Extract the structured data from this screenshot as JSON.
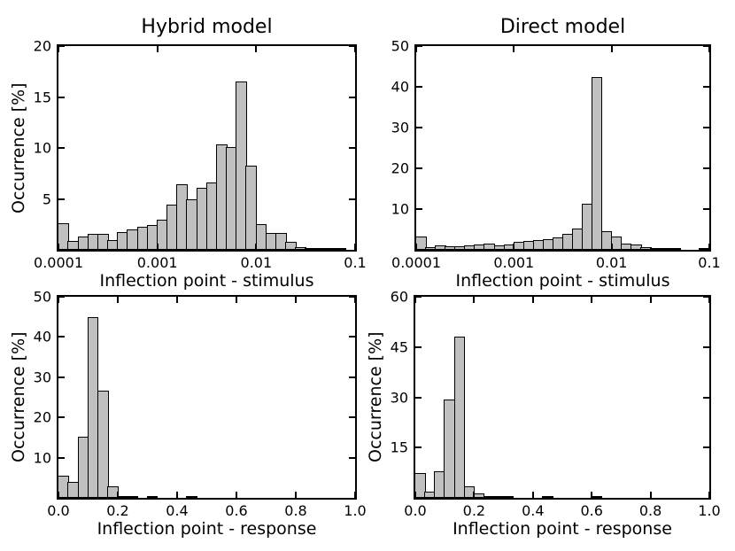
{
  "figure": {
    "background_color": "#ffffff",
    "bar_fill_color": "#c0c0c0",
    "bar_edge_color": "#000000",
    "axis_color": "#000000"
  },
  "chart_data": [
    {
      "id": "hybrid-stimulus",
      "position": "top-left",
      "type": "bar",
      "title": "Hybrid model",
      "xlabel": "Inflection point - stimulus",
      "ylabel": "Occurrence [%]",
      "xscale": "log",
      "xlim": [
        0.0001,
        0.1
      ],
      "ylim": [
        0,
        20
      ],
      "yticks": [
        5,
        10,
        15,
        20
      ],
      "ytick_labels": [
        "5",
        "10",
        "15",
        "20"
      ],
      "xticks": [
        0.0001,
        0.001,
        0.01,
        0.1
      ],
      "xtick_labels": [
        "0.0001",
        "0.001",
        "0.01",
        "0.1"
      ],
      "n_bins": 30,
      "bins_per_decade": 10,
      "grid": false,
      "values": [
        2.6,
        0.9,
        1.3,
        1.55,
        1.55,
        1.0,
        1.75,
        2.0,
        2.25,
        2.45,
        3.0,
        4.4,
        6.4,
        5.0,
        6.05,
        6.6,
        10.35,
        10.05,
        16.5,
        8.3,
        2.55,
        1.65,
        1.65,
        0.75,
        0.3,
        0.2,
        0.1,
        0.05,
        0.15,
        0
      ]
    },
    {
      "id": "direct-stimulus",
      "position": "top-right",
      "type": "bar",
      "title": "Direct model",
      "xlabel": "Inflection point - stimulus",
      "ylabel": "",
      "xscale": "log",
      "xlim": [
        0.0001,
        0.1
      ],
      "ylim": [
        0,
        50
      ],
      "yticks": [
        10,
        20,
        30,
        40,
        50
      ],
      "ytick_labels": [
        "10",
        "20",
        "30",
        "40",
        "50"
      ],
      "xticks": [
        0.0001,
        0.001,
        0.01,
        0.1
      ],
      "xtick_labels": [
        "0.0001",
        "0.001",
        "0.01",
        "0.1"
      ],
      "n_bins": 30,
      "bins_per_decade": 10,
      "grid": false,
      "values": [
        3.3,
        0.6,
        1.1,
        0.8,
        0.8,
        1.0,
        1.4,
        1.5,
        1.0,
        1.2,
        1.9,
        2.2,
        2.4,
        2.6,
        3.0,
        3.9,
        5.3,
        11.2,
        42.3,
        4.6,
        3.3,
        1.6,
        1.2,
        0.7,
        0.4,
        0.2,
        0.05,
        0,
        0,
        0.15
      ]
    },
    {
      "id": "hybrid-response",
      "position": "bottom-left",
      "type": "bar",
      "title": "",
      "xlabel": "Inflection point - response",
      "ylabel": "Occurrence [%]",
      "xscale": "linear",
      "xlim": [
        0,
        1
      ],
      "ylim": [
        0,
        50
      ],
      "yticks": [
        10,
        20,
        30,
        40,
        50
      ],
      "ytick_labels": [
        "10",
        "20",
        "30",
        "40",
        "50"
      ],
      "xticks": [
        0,
        0.2,
        0.4,
        0.6,
        0.8,
        1.0
      ],
      "xtick_labels": [
        "0.0",
        "0.2",
        "0.4",
        "0.6",
        "0.8",
        "1.0"
      ],
      "n_bins": 30,
      "bin_width": 0.0333,
      "grid": false,
      "values": [
        5.6,
        3.9,
        15.3,
        45.0,
        26.7,
        2.9,
        0.5,
        0.2,
        0,
        0.35,
        0,
        0,
        0,
        0.25,
        0,
        0,
        0,
        0,
        0,
        0,
        0,
        0,
        0,
        0,
        0,
        0,
        0,
        0,
        0,
        0
      ]
    },
    {
      "id": "direct-response",
      "position": "bottom-right",
      "type": "bar",
      "title": "",
      "xlabel": "Inflection point - response",
      "ylabel": "Occurrence [%]",
      "xscale": "linear",
      "xlim": [
        0,
        1
      ],
      "ylim": [
        0,
        60
      ],
      "yticks": [
        15,
        30,
        45,
        60
      ],
      "ytick_labels": [
        "15",
        "30",
        "45",
        "60"
      ],
      "xticks": [
        0,
        0.2,
        0.4,
        0.6,
        0.8,
        1.0
      ],
      "xtick_labels": [
        "0.0",
        "0.2",
        "0.4",
        "0.6",
        "0.8",
        "1.0"
      ],
      "n_bins": 30,
      "bin_width": 0.0333,
      "grid": false,
      "values": [
        7.3,
        1.8,
        7.9,
        29.3,
        48.2,
        3.4,
        1.2,
        0.5,
        0.3,
        0.15,
        0,
        0,
        0,
        0.1,
        0,
        0,
        0,
        0,
        0.1,
        0,
        0,
        0,
        0,
        0,
        0,
        0,
        0,
        0,
        0,
        0
      ]
    }
  ]
}
